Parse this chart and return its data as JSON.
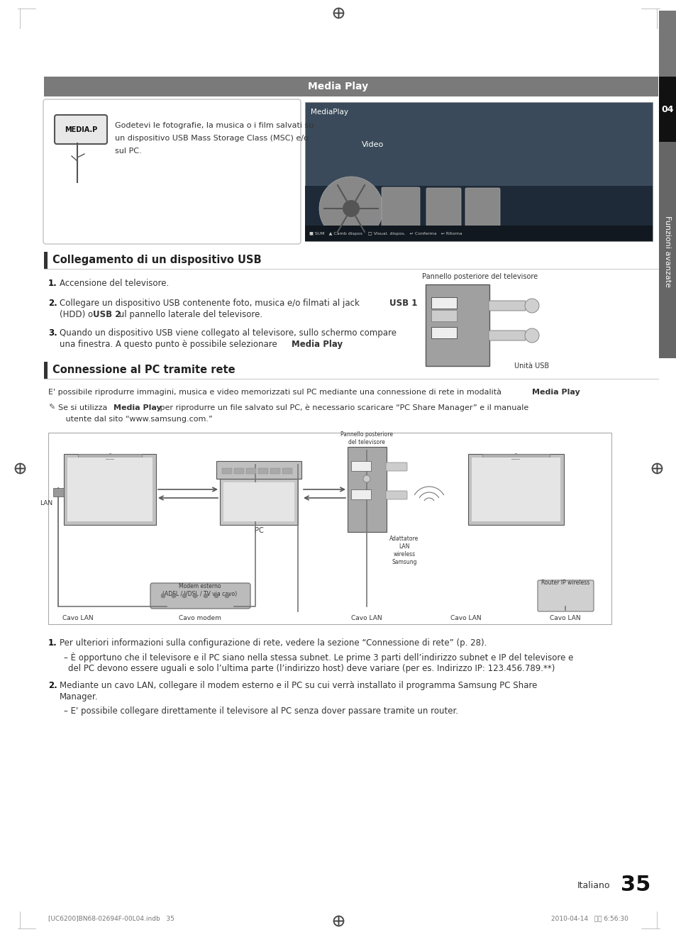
{
  "page_bg": "#ffffff",
  "sidebar_color1": "#7a7a7a",
  "sidebar_color2": "#111111",
  "sidebar_color3": "#5a5a5a",
  "sidebar_text": "Funzioni avanzate",
  "sidebar_number": "04",
  "header_bg": "#7a7a7a",
  "header_text": "Media Play",
  "title1": "Collegamento di un dispositivo USB",
  "title2": "Connessione al PC tramite rete",
  "media_play_desc_line1": "Godetevi le fotografie, la musica o i film salvati su",
  "media_play_desc_line2": "un dispositivo USB Mass Storage Class (MSC) e/o",
  "media_play_desc_line3": "sul PC.",
  "usb_step1": "Accensione del televisore.",
  "usb_step2a": "Collegare un dispositivo USB contenente foto, musica e/o filmati al jack ",
  "usb_step2b": "USB 1",
  "usb_step2c": "\n(HDD) o ",
  "usb_step2d": "USB 2",
  "usb_step2e": " ul pannello laterale del televisore.",
  "usb_step3a": "Quando un dispositivo USB viene collegato al televisore, sullo schermo compare",
  "usb_step3b": "una finestra. A questo punto è possibile selezionare ",
  "usb_step3c": "Media Play",
  "usb_step3d": ".",
  "pannello_label": "Pannello posteriore del televisore",
  "unita_usb_label": "Unità USB",
  "connessione_desc1a": "E' possibile riprodurre immagini, musica e video memorizzati sul PC mediante una connessione di rete in modalità ",
  "connessione_desc1b": "Media Play",
  "connessione_desc1c": ".",
  "connessione_note_a": "Se si utilizza ",
  "connessione_note_b": "Media Play",
  "connessione_note_c": " per riprodurre un file salvato sul PC, è necessario scaricare “PC Share Manager” e il manuale",
  "connessione_note_d": "utente dal sito “www.samsung.com.”",
  "diag_LAN": "LAN",
  "diag_PC": "PC",
  "diag_pannello": "Pannello posteriore\ndel televisore",
  "diag_adattatore": "Adattatore\nLAN\nwireless\nSamsung",
  "diag_router": "Router IP wireless",
  "diag_modem": "Modem esterno\n(ADSL / VDSL / TV via cavo)",
  "diag_cavo_lan1": "Cavo LAN",
  "diag_cavo_modem": "Cavo modem",
  "diag_cavo_lan2": "Cavo LAN",
  "diag_cavo_lan3": "Cavo LAN",
  "diag_cavo_lan4": "Cavo LAN",
  "bottom_step1": "Per ulteriori informazioni sulla configurazione di rete, vedere la sezione “Connessione di rete” (p. 28).",
  "bottom_step1_sub": "È opportuno che il televisore e il PC siano nella stessa subnet. Le prime 3 parti dell’indirizzo subnet e IP del televisore e\ndel PC devono essere uguali e solo l’ultima parte (l’indirizzo host) deve variare (per es. Indirizzo IP: 123.456.789.**)",
  "bottom_step2": "Mediante un cavo LAN, collegare il modem esterno e il PC su cui verrà installato il programma Samsung PC Share\nManager.",
  "bottom_step2_sub": "E' possibile collegare direttamente il televisore al PC senza dover passare tramite un router.",
  "page_number": "35",
  "page_lang": "Italiano",
  "footer_left": "[UC6200]BN68-02694F-00L04.indb   35",
  "footer_right": "2010-04-14   오후 6:56:30"
}
